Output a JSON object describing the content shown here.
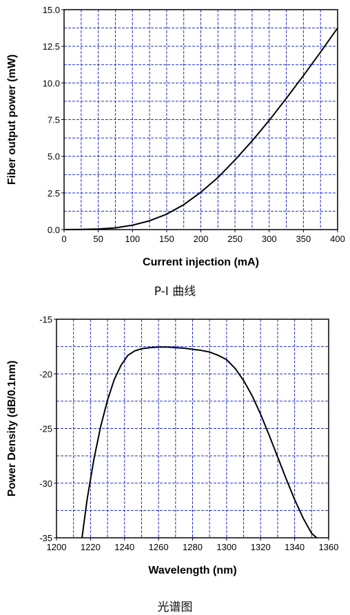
{
  "chart_data": [
    {
      "type": "line",
      "title": "",
      "xlabel": "Current injection (mA)",
      "ylabel": "Fiber output power (mW)",
      "xlim": [
        0,
        400
      ],
      "ylim": [
        0,
        15
      ],
      "xticks": [
        0,
        50,
        100,
        150,
        200,
        250,
        300,
        350,
        400
      ],
      "yticks": [
        0.0,
        2.5,
        5.0,
        7.5,
        10.0,
        12.5,
        15.0
      ],
      "xtick_labels": [
        "0",
        "50",
        "100",
        "150",
        "200",
        "250",
        "300",
        "350",
        "400"
      ],
      "ytick_labels": [
        "0.0",
        "2.5",
        "5.0",
        "7.5",
        "10.0",
        "12.5",
        "15.0"
      ],
      "grid": true,
      "grid_color": "#1f2bd6",
      "line_color": "#000000",
      "series": [
        {
          "x": [
            0,
            25,
            50,
            75,
            100,
            125,
            150,
            175,
            200,
            225,
            250,
            275,
            300,
            325,
            350,
            375,
            400
          ],
          "y": [
            0,
            0.01,
            0.04,
            0.12,
            0.3,
            0.6,
            1.05,
            1.7,
            2.55,
            3.55,
            4.75,
            6.05,
            7.45,
            8.95,
            10.5,
            12.1,
            13.75
          ]
        }
      ],
      "caption": "P-I 曲线"
    },
    {
      "type": "line",
      "title": "",
      "xlabel": "Wavelength (nm)",
      "ylabel": "Power Density (dB/0.1nm)",
      "xlim": [
        1200,
        1360
      ],
      "ylim": [
        -35,
        -15
      ],
      "xticks": [
        1200,
        1220,
        1240,
        1260,
        1280,
        1300,
        1320,
        1340,
        1360
      ],
      "yticks": [
        -35,
        -30,
        -25,
        -20,
        -15
      ],
      "xtick_labels": [
        "1200",
        "1220",
        "1240",
        "1260",
        "1280",
        "1300",
        "1320",
        "1340",
        "1360"
      ],
      "ytick_labels": [
        "-35",
        "-30",
        "-25",
        "-20",
        "-15"
      ],
      "grid": true,
      "grid_color": "#1f2bd6",
      "line_color": "#000000",
      "series": [
        {
          "x": [
            1215,
            1218,
            1222,
            1226,
            1230,
            1234,
            1238,
            1242,
            1246,
            1250,
            1255,
            1260,
            1265,
            1270,
            1275,
            1280,
            1285,
            1290,
            1295,
            1300,
            1305,
            1310,
            1315,
            1320,
            1325,
            1330,
            1335,
            1340,
            1345,
            1350,
            1353
          ],
          "y": [
            -35,
            -31.5,
            -27.8,
            -24.8,
            -22.4,
            -20.5,
            -19.2,
            -18.3,
            -17.9,
            -17.7,
            -17.6,
            -17.55,
            -17.55,
            -17.6,
            -17.65,
            -17.75,
            -17.85,
            -18.0,
            -18.3,
            -18.7,
            -19.5,
            -20.6,
            -22.0,
            -23.7,
            -25.6,
            -27.6,
            -29.6,
            -31.5,
            -33.2,
            -34.6,
            -35
          ]
        }
      ],
      "caption": "光谱图"
    }
  ]
}
